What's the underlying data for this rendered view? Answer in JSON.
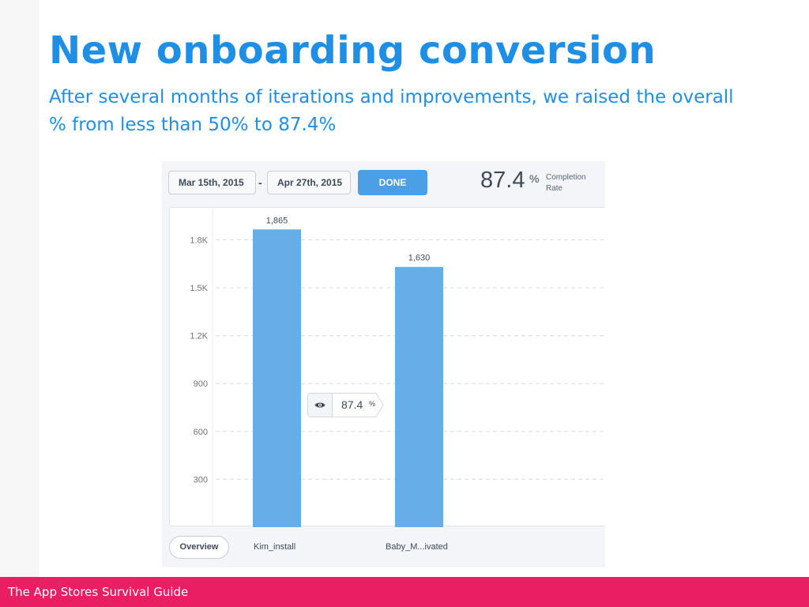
{
  "slide": {
    "title": "New onboarding conversion",
    "subtitle": "After several months of iterations and improvements, we raised the overall % from less than 50% to 87.4%",
    "footer": "The App Stores Survival Guide",
    "colors": {
      "title": "#1f8fe6",
      "footer_bg": "#e91e63",
      "bar": "#65aee8",
      "button": "#4a9fe6"
    }
  },
  "toolbar": {
    "start_date": "Mar 15th, 2015",
    "separator": "-",
    "end_date": "Apr 27th, 2015",
    "done_label": "DONE",
    "completion_value": "87.4",
    "completion_unit": "%",
    "completion_label": "Completion Rate"
  },
  "tooltip": {
    "icon": "eye-icon",
    "value": "87.4",
    "unit": "%"
  },
  "footer_bar": {
    "overview_label": "Overview"
  },
  "chart_data": {
    "type": "bar",
    "categories": [
      "Kim_install",
      "Baby_M...ivated"
    ],
    "values": [
      1865,
      1630
    ],
    "value_labels": [
      "1,865",
      "1,630"
    ],
    "yticks": [
      300,
      600,
      900,
      1200,
      1500,
      1800
    ],
    "ytick_labels": [
      "300",
      "600",
      "900",
      "1.2K",
      "1.5K",
      "1.8K"
    ],
    "ylim": [
      0,
      2000
    ],
    "grid": true,
    "title": "",
    "xlabel": "",
    "ylabel": ""
  }
}
